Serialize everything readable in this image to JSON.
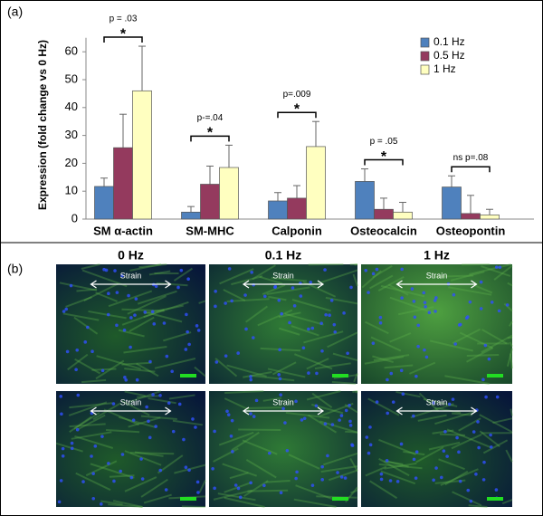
{
  "panel_labels": [
    "(a)",
    "(b)"
  ],
  "chart_data": {
    "type": "bar",
    "ylabel": "Expression (fold change vs 0 Hz)",
    "categories": [
      "SM α-actin",
      "SM-MHC",
      "Calponin",
      "Osteocalcin",
      "Osteopontin"
    ],
    "series": [
      {
        "name": "0.1 Hz",
        "color": "#4f81bd",
        "values": [
          11.7,
          2.5,
          6.5,
          13.5,
          11.5
        ],
        "errors": [
          3,
          2,
          3,
          4.5,
          4
        ]
      },
      {
        "name": "0.5 Hz",
        "color": "#943a5e",
        "values": [
          25.6,
          12.5,
          7.5,
          3.5,
          2
        ],
        "errors": [
          12,
          6.5,
          4.5,
          4,
          6.5
        ]
      },
      {
        "name": "1 Hz",
        "color": "#ffffc0",
        "values": [
          46,
          18.5,
          26,
          2.5,
          1.5
        ],
        "errors": [
          16,
          8,
          9,
          3.5,
          2
        ]
      }
    ],
    "significance": [
      "*",
      "*",
      "*",
      "*",
      null
    ],
    "p_values": [
      "p = .03",
      "p-=.04",
      "p=.009",
      "p = .05",
      "ns p=.08"
    ],
    "ylim": [
      0,
      65
    ],
    "yticks": [
      0,
      10,
      20,
      30,
      40,
      50,
      60
    ],
    "legend": "top-right"
  },
  "images": {
    "columns": [
      "0 Hz",
      "0.1 Hz",
      "1 Hz"
    ],
    "strain_label": "Strain"
  }
}
